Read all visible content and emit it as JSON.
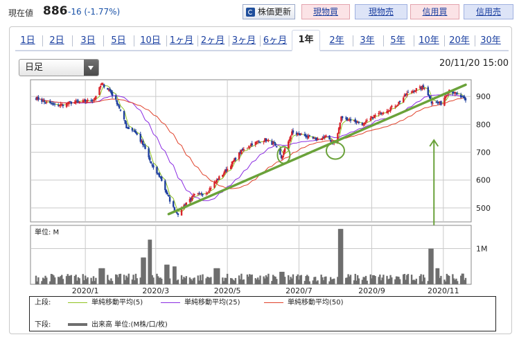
{
  "header": {
    "price_label": "現在値",
    "price_value": "886",
    "price_change": "-16 (-1.77%)",
    "update_button": "株価更新",
    "trade_buttons": [
      {
        "label": "現物買",
        "kind": "buy"
      },
      {
        "label": "現物売",
        "kind": "sell"
      },
      {
        "label": "信用買",
        "kind": "buy"
      },
      {
        "label": "信用売",
        "kind": "sell"
      }
    ]
  },
  "tabs": [
    "1日",
    "2日",
    "3日",
    "5日",
    "10日",
    "1ヶ月",
    "2ヶ月",
    "3ヶ月",
    "6ヶ月",
    "1年",
    "2年",
    "3年",
    "5年",
    "10年",
    "20年",
    "30年"
  ],
  "active_tab": "1年",
  "period_select": "日足",
  "timestamp": "20/11/20 15:00",
  "colors": {
    "candle_up": "#d8232a",
    "candle_down": "#1f3f9e",
    "ma5": "#8fc31f",
    "ma25": "#8a2be2",
    "ma50": "#e0412a",
    "volume": "#6e6e6e",
    "annotation": "#6aa23a"
  },
  "legend": {
    "upper_label": "上段:",
    "lower_label": "下段:",
    "ma5": "単純移動平均(5)",
    "ma25": "単純移動平均(25)",
    "ma50": "単純移動平均(50)",
    "volume": "出来高 単位:(M株/口/枚)"
  },
  "chart_data": {
    "type": "candlestick",
    "price_axis": {
      "ticks": [
        900,
        800,
        700,
        600,
        500
      ],
      "ylim": [
        450,
        960
      ]
    },
    "volume_axis": {
      "unit_label": "単位: M",
      "ticks": [
        {
          "value": 1,
          "label": "1M"
        }
      ],
      "ylim": [
        0,
        1.65
      ]
    },
    "x_ticks": [
      "2020/1",
      "2020/3",
      "2020/5",
      "2020/7",
      "2020/9",
      "2020/11"
    ],
    "x_tick_dates": [
      "2020-01-01",
      "2020-03-01",
      "2020-05-01",
      "2020-07-01",
      "2020-09-01",
      "2020-11-01"
    ],
    "date_range": [
      "2019-11-20",
      "2020-11-20"
    ],
    "last_close": 886,
    "price_path": [
      [
        "2019-11-20",
        895
      ],
      [
        "2019-11-28",
        878
      ],
      [
        "2019-12-06",
        868
      ],
      [
        "2019-12-14",
        872
      ],
      [
        "2019-12-22",
        880
      ],
      [
        "2019-12-31",
        882
      ],
      [
        "2020-01-08",
        888
      ],
      [
        "2020-01-15",
        945
      ],
      [
        "2020-01-22",
        920
      ],
      [
        "2020-01-29",
        870
      ],
      [
        "2020-02-05",
        790
      ],
      [
        "2020-02-12",
        775
      ],
      [
        "2020-02-20",
        720
      ],
      [
        "2020-02-28",
        640
      ],
      [
        "2020-03-05",
        610
      ],
      [
        "2020-03-10",
        555
      ],
      [
        "2020-03-16",
        500
      ],
      [
        "2020-03-20",
        480
      ],
      [
        "2020-03-27",
        520
      ],
      [
        "2020-04-03",
        545
      ],
      [
        "2020-04-13",
        555
      ],
      [
        "2020-04-22",
        600
      ],
      [
        "2020-05-01",
        640
      ],
      [
        "2020-05-12",
        700
      ],
      [
        "2020-05-22",
        730
      ],
      [
        "2020-06-02",
        745
      ],
      [
        "2020-06-10",
        728
      ],
      [
        "2020-06-16",
        680
      ],
      [
        "2020-06-25",
        770
      ],
      [
        "2020-07-05",
        760
      ],
      [
        "2020-07-15",
        745
      ],
      [
        "2020-07-24",
        755
      ],
      [
        "2020-08-01",
        730
      ],
      [
        "2020-08-06",
        825
      ],
      [
        "2020-08-15",
        815
      ],
      [
        "2020-08-25",
        800
      ],
      [
        "2020-09-03",
        830
      ],
      [
        "2020-09-12",
        848
      ],
      [
        "2020-09-22",
        870
      ],
      [
        "2020-10-01",
        910
      ],
      [
        "2020-10-08",
        925
      ],
      [
        "2020-10-16",
        935
      ],
      [
        "2020-10-22",
        880
      ],
      [
        "2020-10-30",
        875
      ],
      [
        "2020-11-06",
        925
      ],
      [
        "2020-11-13",
        905
      ],
      [
        "2020-11-20",
        886
      ]
    ],
    "volume_spikes": [
      [
        "2020-01-15",
        0.45
      ],
      [
        "2020-02-20",
        0.75
      ],
      [
        "2020-02-24",
        1.25
      ],
      [
        "2020-03-10",
        0.55
      ],
      [
        "2020-03-16",
        0.5
      ],
      [
        "2020-04-22",
        0.45
      ],
      [
        "2020-06-16",
        0.35
      ],
      [
        "2020-08-06",
        1.55
      ],
      [
        "2020-10-22",
        1.0
      ],
      [
        "2020-10-26",
        0.45
      ]
    ],
    "trendline": [
      [
        "2020-03-12",
        478
      ],
      [
        "2020-11-20",
        942
      ]
    ]
  }
}
